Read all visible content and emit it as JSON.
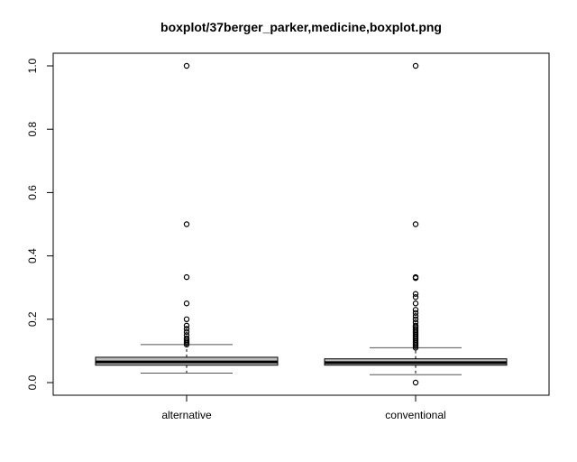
{
  "chart_data": {
    "type": "boxplot",
    "title": "boxplot/37berger_parker,medicine,boxplot.png",
    "xlabel": "",
    "ylabel": "",
    "ylim": [
      0.0,
      1.0
    ],
    "yticks": [
      "0.0",
      "0.2",
      "0.4",
      "0.6",
      "0.8",
      "1.0"
    ],
    "categories": [
      "alternative",
      "conventional"
    ],
    "grid": false,
    "colors": {
      "box_fill": "#bebebe",
      "stroke": "#000000",
      "whisker": "#555555"
    },
    "boxes": [
      {
        "name": "alternative",
        "whisker_low": 0.03,
        "q1": 0.055,
        "median": 0.065,
        "q3": 0.08,
        "whisker_high": 0.12,
        "outliers": [
          0.12,
          0.125,
          0.13,
          0.135,
          0.14,
          0.15,
          0.16,
          0.17,
          0.18,
          0.2,
          0.25,
          0.333,
          0.5,
          1.0
        ]
      },
      {
        "name": "conventional",
        "whisker_low": 0.025,
        "q1": 0.055,
        "median": 0.063,
        "q3": 0.075,
        "whisker_high": 0.11,
        "outliers": [
          0.0,
          0.11,
          0.115,
          0.12,
          0.125,
          0.13,
          0.135,
          0.14,
          0.145,
          0.15,
          0.155,
          0.16,
          0.165,
          0.17,
          0.175,
          0.18,
          0.19,
          0.2,
          0.21,
          0.22,
          0.23,
          0.25,
          0.27,
          0.28,
          0.33,
          0.333,
          0.5,
          1.0
        ]
      }
    ]
  }
}
